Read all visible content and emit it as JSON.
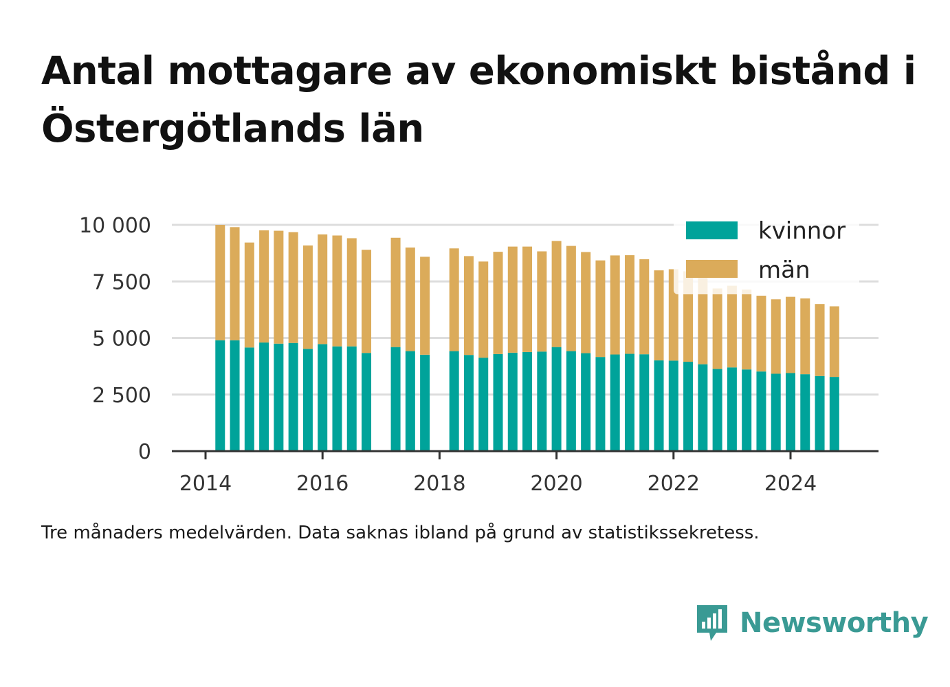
{
  "title": "Antal mottagare av ekonomiskt bistånd i Östergötlands län",
  "caption": "Tre månaders medelvärden. Data saknas ibland på grund av statistikssekretess.",
  "brand": {
    "name": "Newsworthy",
    "logo_icon": "newsworthy-chart-bubble-icon",
    "color": "#3a9a94"
  },
  "chart_data": {
    "type": "bar",
    "stacked": true,
    "x": [
      "2014-04",
      "2014-07",
      "2014-10",
      "2015-01",
      "2015-04",
      "2015-07",
      "2015-10",
      "2016-01",
      "2016-04",
      "2016-07",
      "2016-10",
      "2017-04",
      "2017-07",
      "2017-10",
      "2018-04",
      "2018-07",
      "2018-10",
      "2019-01",
      "2019-04",
      "2019-07",
      "2019-10",
      "2020-01",
      "2020-04",
      "2020-07",
      "2020-10",
      "2021-01",
      "2021-04",
      "2021-07",
      "2021-10",
      "2022-01",
      "2022-04",
      "2022-07",
      "2022-10",
      "2023-01",
      "2023-04",
      "2023-07",
      "2023-10",
      "2024-01",
      "2024-04",
      "2024-07",
      "2024-10"
    ],
    "series": [
      {
        "name": "kvinnor",
        "color": "#00a39a",
        "values": [
          4900,
          4900,
          4580,
          4800,
          4750,
          4780,
          4520,
          4730,
          4630,
          4630,
          4340,
          4600,
          4420,
          4260,
          4420,
          4250,
          4130,
          4290,
          4350,
          4380,
          4400,
          4600,
          4420,
          4330,
          4160,
          4270,
          4300,
          4280,
          4010,
          4000,
          3950,
          3840,
          3630,
          3700,
          3610,
          3520,
          3420,
          3450,
          3400,
          3320,
          3280
        ]
      },
      {
        "name": "män",
        "color": "#dbab5a",
        "values": [
          5100,
          5000,
          4640,
          4960,
          4990,
          4900,
          4570,
          4850,
          4900,
          4780,
          4560,
          4830,
          4580,
          4330,
          4540,
          4370,
          4250,
          4520,
          4690,
          4660,
          4430,
          4690,
          4650,
          4470,
          4270,
          4380,
          4360,
          4200,
          3980,
          4040,
          4000,
          3900,
          3560,
          3610,
          3530,
          3350,
          3290,
          3370,
          3350,
          3180,
          3120
        ]
      }
    ],
    "x_ticks": [
      "2014",
      "2016",
      "2018",
      "2020",
      "2022",
      "2024"
    ],
    "y_ticks": [
      "0",
      "2 500",
      "5 000",
      "7 500",
      "10 000"
    ],
    "ylim": [
      0,
      10000
    ],
    "grid": true,
    "legend_position": "top-right"
  }
}
